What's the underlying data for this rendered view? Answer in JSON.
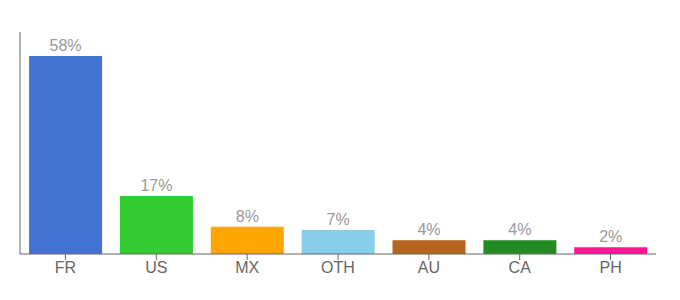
{
  "chart_data": {
    "type": "bar",
    "categories": [
      "FR",
      "US",
      "MX",
      "OTH",
      "AU",
      "CA",
      "PH"
    ],
    "values": [
      58,
      17,
      8,
      7,
      4,
      4,
      2
    ],
    "value_labels": [
      "58%",
      "17%",
      "8%",
      "7%",
      "4%",
      "4%",
      "2%"
    ],
    "colors": [
      "#4472d4",
      "#33cc33",
      "#ffa500",
      "#87ceeb",
      "#b5651d",
      "#228b22",
      "#ff1493"
    ],
    "ylim": [
      0,
      65
    ],
    "grid": false,
    "data_labels": true,
    "tick_labels": "x"
  }
}
